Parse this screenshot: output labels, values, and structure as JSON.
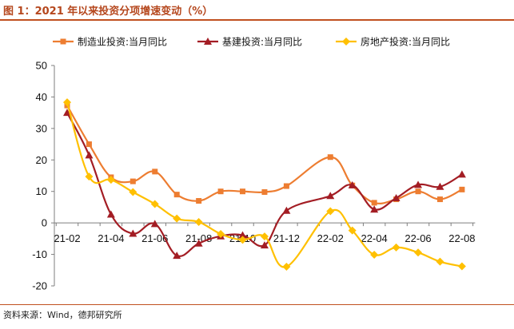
{
  "figure": {
    "title": "图 1：2021 年以来投资分项增速变动（%）",
    "source": "资料来源：Wind，德邦研究所"
  },
  "chart_data": {
    "type": "line",
    "title": "",
    "xlabel": "",
    "ylabel": "",
    "ylim": [
      -20,
      50
    ],
    "yticks": [
      -20,
      -10,
      0,
      10,
      20,
      30,
      40,
      50
    ],
    "grid": false,
    "legend_position": "top",
    "x": [
      "21-02",
      "21-03",
      "21-04",
      "21-05",
      "21-06",
      "21-07",
      "21-08",
      "21-09",
      "21-10",
      "21-11",
      "21-12",
      "22-01",
      "22-02",
      "22-03",
      "22-04",
      "22-05",
      "22-06",
      "22-07",
      "22-08"
    ],
    "x_tick_labels": [
      "21-02",
      "21-04",
      "21-06",
      "21-08",
      "21-10",
      "21-12",
      "22-02",
      "22-04",
      "22-06",
      "22-08"
    ],
    "series": [
      {
        "name": "制造业投资:当月同比",
        "color": "#ed7d31",
        "marker": "square",
        "values": [
          37.3,
          25.0,
          14.5,
          13.2,
          16.3,
          9.0,
          7.0,
          10.0,
          10.0,
          9.8,
          11.7,
          null,
          20.9,
          11.9,
          6.4,
          7.5,
          10.0,
          7.5,
          10.6
        ]
      },
      {
        "name": "基建投资:当月同比",
        "color": "#a31d24",
        "marker": "triangle",
        "values": [
          35.0,
          21.5,
          2.7,
          -3.4,
          -0.3,
          -10.4,
          -6.5,
          -4.2,
          -3.9,
          -7.1,
          3.9,
          null,
          8.6,
          12.0,
          4.3,
          7.9,
          12.1,
          11.5,
          15.4
        ]
      },
      {
        "name": "房地产投资:当月同比",
        "color": "#ffc000",
        "marker": "diamond",
        "values": [
          38.3,
          14.7,
          13.7,
          9.8,
          6.0,
          1.4,
          0.3,
          -3.5,
          -5.4,
          -4.3,
          -13.9,
          null,
          3.7,
          -2.4,
          -10.1,
          -7.8,
          -9.4,
          -12.3,
          -13.8
        ]
      }
    ]
  }
}
